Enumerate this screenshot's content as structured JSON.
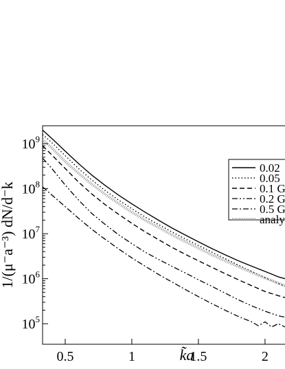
{
  "chart_data": {
    "type": "line",
    "xlabel": "k̃a",
    "ylabel": "1/(μ⁻a⁻³) dN/d⁻k",
    "ylog": true,
    "xlim": [
      0.33,
      2.15
    ],
    "ylim": [
      35000,
      2500000000
    ],
    "grid": false,
    "legend_position": "top-right",
    "x_ticks": [
      {
        "value": 0.5,
        "label": "0.5"
      },
      {
        "value": 1,
        "label": "1"
      },
      {
        "value": 1.5,
        "label": "1.5"
      },
      {
        "value": 2,
        "label": "2"
      }
    ],
    "y_ticks": [
      {
        "value": 100000,
        "base": "10",
        "exp": "5"
      },
      {
        "value": 1000000,
        "base": "10",
        "exp": "6"
      },
      {
        "value": 10000000,
        "base": "10",
        "exp": "7"
      },
      {
        "value": 100000000,
        "base": "10",
        "exp": "8"
      },
      {
        "value": 1000000000,
        "base": "10",
        "exp": "9"
      }
    ],
    "series": [
      {
        "name": "0.02",
        "style": "solid",
        "x": [
          0.33,
          0.4,
          0.5,
          0.6,
          0.7,
          0.8,
          0.9,
          1.0,
          1.1,
          1.2,
          1.3,
          1.4,
          1.5,
          1.6,
          1.7,
          1.8,
          1.9,
          2.0,
          2.1,
          2.15
        ],
        "y": [
          2000000000,
          1300000000,
          680000000,
          360000000,
          200000000,
          118000000,
          72000000,
          46000000,
          30000000,
          20000000,
          13500000,
          9400000,
          6600000,
          4700000,
          3400000,
          2500000,
          1900000,
          1450000,
          1100000,
          1000000
        ]
      },
      {
        "name": "0.05",
        "style": "dotted",
        "x": [
          0.33,
          0.4,
          0.5,
          0.6,
          0.7,
          0.8,
          0.9,
          1.0,
          1.1,
          1.2,
          1.3,
          1.4,
          1.5,
          1.6,
          1.7,
          1.8,
          1.9,
          2.0,
          2.1,
          2.15
        ],
        "y": [
          1600000000,
          1050000000,
          540000000,
          280000000,
          155000000,
          91000000,
          56000000,
          36000000,
          23500000,
          16000000,
          11000000,
          7700000,
          5500000,
          3900000,
          2800000,
          2000000,
          1450000,
          1050000,
          780000,
          680000
        ]
      },
      {
        "name": "0.1 G",
        "style": "dashed",
        "x": [
          0.33,
          0.4,
          0.5,
          0.6,
          0.7,
          0.8,
          0.9,
          1.0,
          1.1,
          1.2,
          1.3,
          1.4,
          1.5,
          1.6,
          1.7,
          1.8,
          1.9,
          2.0,
          2.1,
          2.15
        ],
        "y": [
          900000000,
          560000000,
          280000000,
          140000000,
          76000000,
          44000000,
          27000000,
          17000000,
          11000000,
          7400000,
          5000000,
          3500000,
          2500000,
          1800000,
          1300000,
          950000,
          700000,
          520000,
          420000,
          380000
        ]
      },
      {
        "name": "0.2 G",
        "style": "dashdotdot",
        "x": [
          0.33,
          0.4,
          0.5,
          0.6,
          0.7,
          0.8,
          0.9,
          1.0,
          1.1,
          1.2,
          1.3,
          1.4,
          1.5,
          1.6,
          1.7,
          1.8,
          1.9,
          2.0,
          2.1,
          2.15
        ],
        "y": [
          480000000,
          280000000,
          120000000,
          56000000,
          28000000,
          16000000,
          9500000,
          6000000,
          3900000,
          2700000,
          1900000,
          1350000,
          950000,
          680000,
          480000,
          340000,
          250000,
          190000,
          150000,
          140000
        ]
      },
      {
        "name": "0.5 G",
        "style": "dashdot",
        "x": [
          0.33,
          0.4,
          0.5,
          0.6,
          0.7,
          0.8,
          0.9,
          1.0,
          1.1,
          1.2,
          1.3,
          1.4,
          1.5,
          1.6,
          1.7,
          1.8,
          1.9,
          1.95,
          2.0,
          2.05,
          2.1,
          2.15
        ],
        "y": [
          110000000,
          72000000,
          40000000,
          22000000,
          12500000,
          7500000,
          4600000,
          2900000,
          1900000,
          1250000,
          850000,
          580000,
          400000,
          280000,
          200000,
          145000,
          110000,
          90000,
          110000,
          85000,
          100000,
          85000
        ]
      },
      {
        "name": "analy",
        "style": "analytic",
        "x": [
          0.33,
          0.4,
          0.5,
          0.6,
          0.7,
          0.8,
          0.9,
          1.0,
          1.1,
          1.2,
          1.3,
          1.4,
          1.5,
          1.6,
          1.7,
          1.8,
          1.9,
          2.0,
          2.1,
          2.15
        ],
        "y": [
          1250000000,
          800000000,
          400000000,
          220000000,
          125000000,
          75000000,
          47000000,
          30000000,
          20000000,
          13800000,
          9500000,
          6700000,
          4800000,
          3400000,
          2500000,
          1850000,
          1380000,
          1040000,
          800000,
          700000
        ]
      }
    ]
  }
}
